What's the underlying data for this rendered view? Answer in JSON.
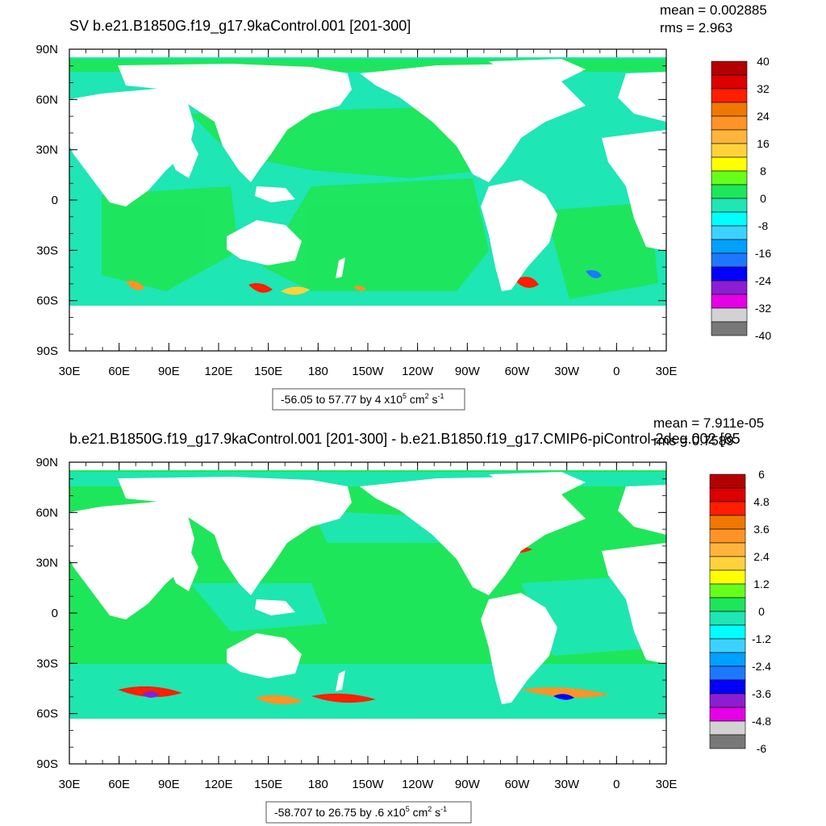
{
  "chart_data": [
    {
      "type": "heatmap",
      "title": "SV b.e21.B1850G.f19_g17.9kaControl.001 [201-300]",
      "mean_text": "mean = 0.002885",
      "rms_text": "rms = 2.963",
      "x_ticks": [
        "30E",
        "60E",
        "90E",
        "120E",
        "150E",
        "180",
        "150W",
        "120W",
        "90W",
        "60W",
        "30W",
        "0",
        "30E"
      ],
      "y_ticks": [
        "90N",
        "60N",
        "30N",
        "0",
        "30S",
        "60S",
        "90S"
      ],
      "xlim": [
        30,
        390
      ],
      "ylim": [
        -90,
        90
      ],
      "range_text": "-56.05 to 57.77 by 4 x10",
      "units_exponent": "5",
      "units_tail": " cm",
      "units_sq": "2",
      "units_s": " s",
      "units_inv": "-1",
      "colorbar_labels": [
        "40",
        "32",
        "24",
        "16",
        "8",
        "0",
        "-8",
        "-16",
        "-24",
        "-32",
        "-40"
      ],
      "colorbar_colors": [
        "#b30000",
        "#dc0000",
        "#ff1e00",
        "#f07800",
        "#ff9326",
        "#ffb43c",
        "#ffd23c",
        "#ffff00",
        "#66ff1a",
        "#1ee65a",
        "#1ee6b4",
        "#00ffff",
        "#3cd2ff",
        "#00a0ff",
        "#1e78ff",
        "#0000ff",
        "#8c1ed2",
        "#e600e6",
        "#d2d2d2",
        "#787878"
      ]
    },
    {
      "type": "heatmap",
      "title": "b.e21.B1850G.f19_g17.9kaControl.001 [201-300] - b.e21.B1850.f19_g17.CMIP6-piControl-2deg.002 [85",
      "mean_text": "mean = 7.911e-05",
      "rms_text": "rms = 0.7589",
      "x_ticks": [
        "30E",
        "60E",
        "90E",
        "120E",
        "150E",
        "180",
        "150W",
        "120W",
        "90W",
        "60W",
        "30W",
        "0",
        "30E"
      ],
      "y_ticks": [
        "90N",
        "60N",
        "30N",
        "0",
        "30S",
        "60S",
        "90S"
      ],
      "xlim": [
        30,
        390
      ],
      "ylim": [
        -90,
        90
      ],
      "range_text": "-58.707 to 26.75 by .6 x10",
      "units_exponent": "5",
      "units_tail": " cm",
      "units_sq": "2",
      "units_s": " s",
      "units_inv": "-1",
      "colorbar_labels": [
        "6",
        "4.8",
        "3.6",
        "2.4",
        "1.2",
        "0",
        "-1.2",
        "-2.4",
        "-3.6",
        "-4.8",
        "-6"
      ],
      "colorbar_colors": [
        "#b30000",
        "#dc0000",
        "#ff1e00",
        "#f07800",
        "#ff9326",
        "#ffb43c",
        "#ffd23c",
        "#ffff00",
        "#66ff1a",
        "#1ee65a",
        "#1ee6b4",
        "#00ffff",
        "#3cd2ff",
        "#00a0ff",
        "#1e78ff",
        "#0000ff",
        "#8c1ed2",
        "#e600e6",
        "#d2d2d2",
        "#787878"
      ]
    }
  ],
  "colors": {
    "ocean_base": "#1ee6b4",
    "ocean_green": "#1ee65a",
    "land": "#ffffff",
    "frame": "#000000"
  }
}
